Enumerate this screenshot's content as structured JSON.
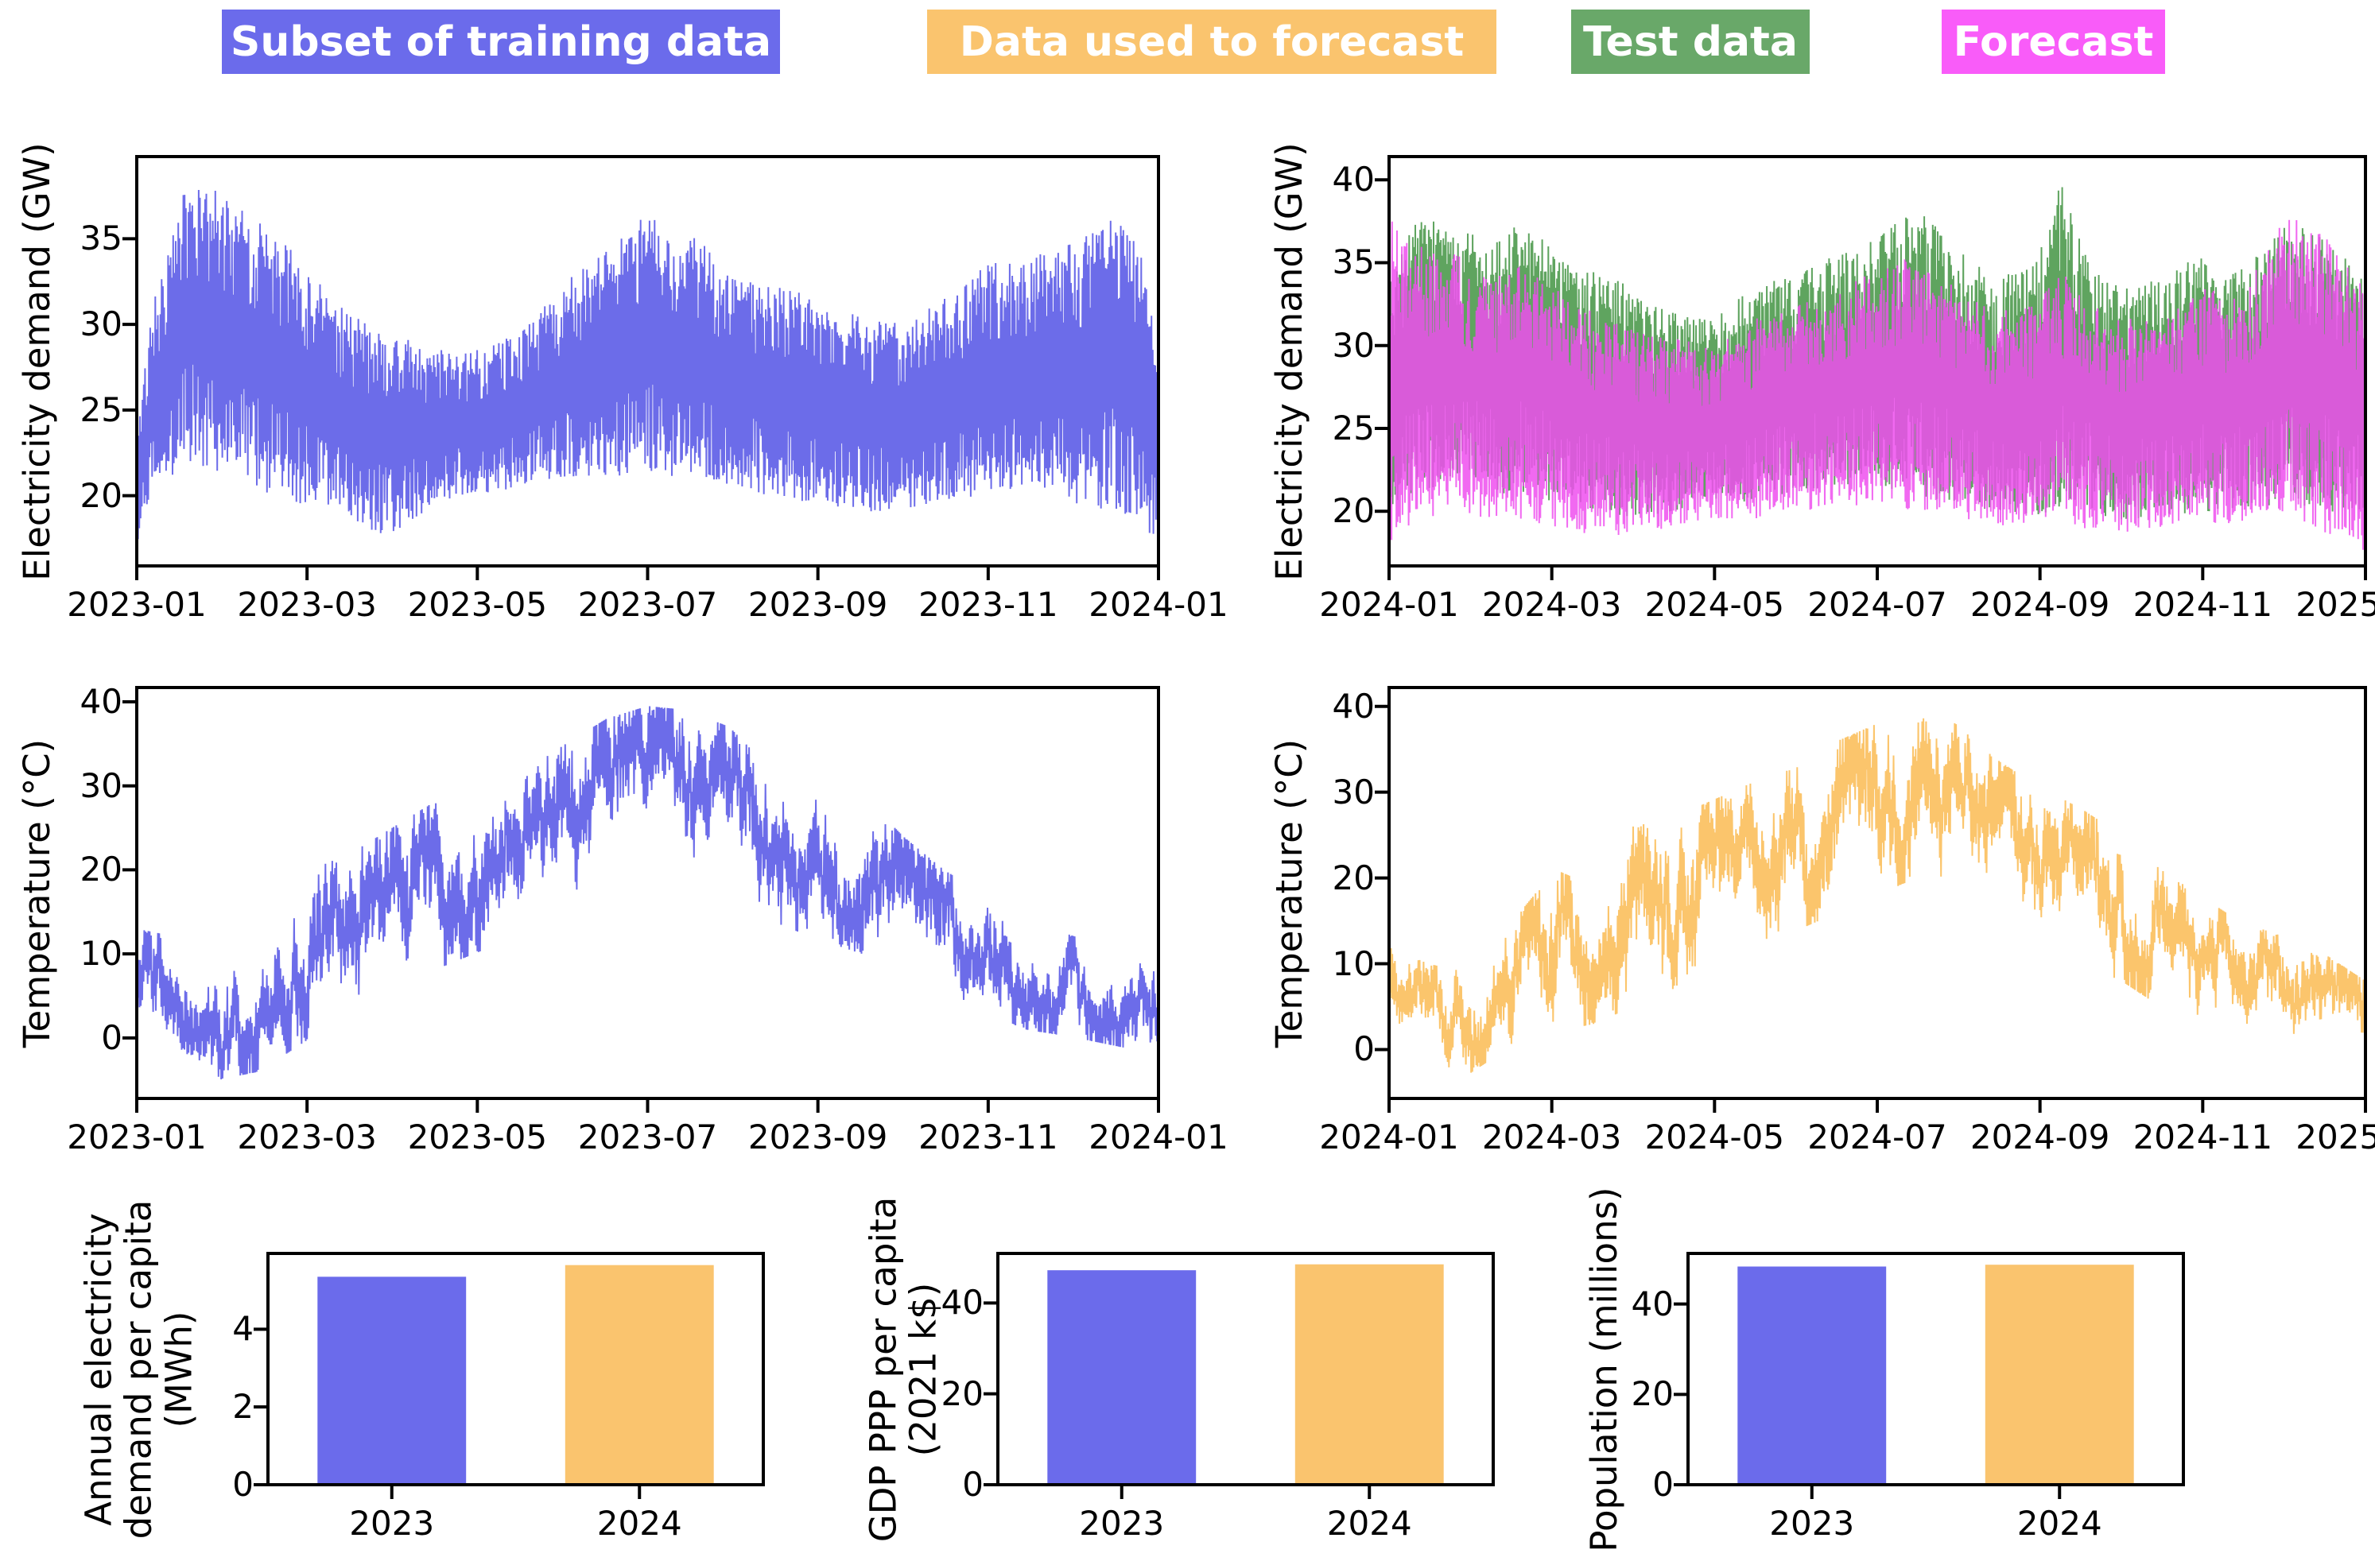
{
  "legend": {
    "items": [
      {
        "label": "Subset of training data",
        "color": "#6B6BEB",
        "text_color": "#ffffff"
      },
      {
        "label": "Data used to forecast",
        "color": "#FAC46E",
        "text_color": "#ffffff"
      },
      {
        "label": "Test data",
        "color": "#69A869",
        "text_color": "#ffffff"
      },
      {
        "label": "Forecast",
        "color": "#F95CF9",
        "text_color": "#ffffff"
      }
    ]
  },
  "chart_data": [
    {
      "id": "demand-train",
      "type": "line",
      "ylabel": "Electricity demand (GW)",
      "x_ticks": [
        "2023-01",
        "2023-03",
        "2023-05",
        "2023-07",
        "2023-09",
        "2023-11",
        "2024-01"
      ],
      "y_ticks": [
        20,
        25,
        30,
        35
      ],
      "ylim": [
        15.9,
        39.8
      ],
      "grid": false,
      "series": [
        {
          "name": "Subset of training data",
          "color": "#6C6CE9",
          "pattern": "band",
          "envelope": [
            [
              0.0,
              17.0,
              24.0
            ],
            [
              0.015,
              20.0,
              31.0
            ],
            [
              0.05,
              22.0,
              38.5
            ],
            [
              0.09,
              21.0,
              37.5
            ],
            [
              0.13,
              20.0,
              36.0
            ],
            [
              0.17,
              19.0,
              33.0
            ],
            [
              0.21,
              18.5,
              30.5
            ],
            [
              0.25,
              17.5,
              29.5
            ],
            [
              0.29,
              19.5,
              28.5
            ],
            [
              0.33,
              20.0,
              28.5
            ],
            [
              0.375,
              20.5,
              29.5
            ],
            [
              0.42,
              21.0,
              32.5
            ],
            [
              0.46,
              21.0,
              34.5
            ],
            [
              0.5,
              21.5,
              36.8
            ],
            [
              0.53,
              21.0,
              34.0
            ],
            [
              0.545,
              21.0,
              35.3
            ],
            [
              0.58,
              20.5,
              33.0
            ],
            [
              0.62,
              20.0,
              32.5
            ],
            [
              0.67,
              19.5,
              31.5
            ],
            [
              0.71,
              19.0,
              30.5
            ],
            [
              0.75,
              19.0,
              30.0
            ],
            [
              0.79,
              19.5,
              31.5
            ],
            [
              0.83,
              20.0,
              33.5
            ],
            [
              0.875,
              20.0,
              34.0
            ],
            [
              0.92,
              19.5,
              35.0
            ],
            [
              0.96,
              19.0,
              36.5
            ],
            [
              0.985,
              18.0,
              34.0
            ],
            [
              1.0,
              17.0,
              28.0
            ]
          ]
        }
      ]
    },
    {
      "id": "demand-test-vs-forecast",
      "type": "line",
      "ylabel": "Electricity demand (GW)",
      "x_ticks": [
        "2024-01",
        "2024-03",
        "2024-05",
        "2024-07",
        "2024-09",
        "2024-11",
        "2025-01"
      ],
      "y_ticks": [
        20,
        25,
        30,
        35,
        40
      ],
      "ylim": [
        16.7,
        41.4
      ],
      "grid": false,
      "series": [
        {
          "name": "Test data",
          "color": "#5FA45F",
          "pattern": "band",
          "envelope": [
            [
              0.0,
              19.0,
              34.0
            ],
            [
              0.03,
              21.0,
              38.0
            ],
            [
              0.07,
              22.0,
              37.5
            ],
            [
              0.1,
              21.0,
              36.0
            ],
            [
              0.13,
              21.0,
              37.5
            ],
            [
              0.17,
              20.5,
              36.0
            ],
            [
              0.21,
              20.0,
              34.5
            ],
            [
              0.25,
              19.5,
              33.5
            ],
            [
              0.29,
              20.0,
              32.0
            ],
            [
              0.33,
              20.5,
              31.5
            ],
            [
              0.37,
              20.5,
              33.5
            ],
            [
              0.42,
              21.0,
              34.5
            ],
            [
              0.46,
              21.5,
              35.5
            ],
            [
              0.5,
              21.5,
              36.5
            ],
            [
              0.54,
              21.0,
              38.5
            ],
            [
              0.58,
              20.5,
              36.0
            ],
            [
              0.62,
              20.0,
              34.0
            ],
            [
              0.66,
              19.5,
              35.0
            ],
            [
              0.69,
              20.0,
              40.3
            ],
            [
              0.71,
              20.0,
              36.0
            ],
            [
              0.75,
              19.5,
              33.5
            ],
            [
              0.79,
              19.5,
              34.0
            ],
            [
              0.83,
              20.0,
              35.5
            ],
            [
              0.87,
              20.0,
              34.5
            ],
            [
              0.92,
              20.5,
              37.5
            ],
            [
              0.96,
              20.0,
              36.5
            ],
            [
              1.0,
              19.5,
              34.5
            ]
          ]
        },
        {
          "name": "Forecast",
          "color": "#EE4FEE",
          "pattern": "band",
          "envelope": [
            [
              0.0,
              18.0,
              38.0
            ],
            [
              0.03,
              19.5,
              36.0
            ],
            [
              0.07,
              20.0,
              35.5
            ],
            [
              0.1,
              19.5,
              34.5
            ],
            [
              0.13,
              19.5,
              35.0
            ],
            [
              0.17,
              19.0,
              33.5
            ],
            [
              0.21,
              18.5,
              32.0
            ],
            [
              0.25,
              18.5,
              31.0
            ],
            [
              0.29,
              19.0,
              30.5
            ],
            [
              0.33,
              19.5,
              30.0
            ],
            [
              0.37,
              19.5,
              31.5
            ],
            [
              0.42,
              20.0,
              32.5
            ],
            [
              0.46,
              20.0,
              33.5
            ],
            [
              0.5,
              20.5,
              34.5
            ],
            [
              0.54,
              20.0,
              35.5
            ],
            [
              0.58,
              19.5,
              33.5
            ],
            [
              0.62,
              19.0,
              32.0
            ],
            [
              0.66,
              19.0,
              32.5
            ],
            [
              0.69,
              19.5,
              34.5
            ],
            [
              0.71,
              19.0,
              33.0
            ],
            [
              0.75,
              18.5,
              31.5
            ],
            [
              0.79,
              19.0,
              32.0
            ],
            [
              0.83,
              19.5,
              33.5
            ],
            [
              0.87,
              19.0,
              33.0
            ],
            [
              0.92,
              20.0,
              38.0
            ],
            [
              0.96,
              18.5,
              36.5
            ],
            [
              1.0,
              17.5,
              33.5
            ]
          ]
        }
      ]
    },
    {
      "id": "temp-train",
      "type": "line",
      "ylabel": "Temperature (°C)",
      "x_ticks": [
        "2023-01",
        "2023-03",
        "2023-05",
        "2023-07",
        "2023-09",
        "2023-11",
        "2024-01"
      ],
      "y_ticks": [
        0,
        10,
        20,
        30,
        40
      ],
      "ylim": [
        -7.2,
        41.7
      ],
      "grid": false,
      "series": [
        {
          "name": "Subset of training data",
          "color": "#6C6CE9",
          "pattern": "walk",
          "envelope": [
            [
              0.0,
              -1.0,
              13.0
            ],
            [
              0.04,
              -1.0,
              12.0
            ],
            [
              0.08,
              -5.0,
              10.0
            ],
            [
              0.12,
              -4.0,
              12.0
            ],
            [
              0.17,
              0.0,
              20.0
            ],
            [
              0.21,
              2.0,
              22.0
            ],
            [
              0.25,
              5.0,
              25.0
            ],
            [
              0.29,
              8.0,
              28.0
            ],
            [
              0.33,
              10.0,
              30.0
            ],
            [
              0.37,
              12.0,
              31.0
            ],
            [
              0.42,
              15.0,
              35.0
            ],
            [
              0.46,
              18.0,
              38.0
            ],
            [
              0.5,
              20.0,
              39.5
            ],
            [
              0.54,
              20.0,
              39.0
            ],
            [
              0.58,
              18.0,
              37.0
            ],
            [
              0.62,
              14.0,
              32.0
            ],
            [
              0.66,
              12.0,
              30.0
            ],
            [
              0.71,
              10.0,
              29.0
            ],
            [
              0.75,
              6.0,
              24.0
            ],
            [
              0.79,
              4.0,
              20.0
            ],
            [
              0.83,
              3.0,
              17.0
            ],
            [
              0.87,
              1.0,
              14.0
            ],
            [
              0.92,
              0.0,
              12.0
            ],
            [
              0.96,
              -1.0,
              11.0
            ],
            [
              1.0,
              -2.0,
              10.0
            ]
          ]
        }
      ]
    },
    {
      "id": "temp-forecast-input",
      "type": "line",
      "ylabel": "Temperature (°C)",
      "x_ticks": [
        "2024-01",
        "2024-03",
        "2024-05",
        "2024-07",
        "2024-09",
        "2024-11",
        "2025-01"
      ],
      "y_ticks": [
        0,
        10,
        20,
        30,
        40
      ],
      "ylim": [
        -5.7,
        42.2
      ],
      "grid": false,
      "series": [
        {
          "name": "Data used to forecast",
          "color": "#FBC56C",
          "pattern": "walk",
          "envelope": [
            [
              0.0,
              1.0,
              12.0
            ],
            [
              0.04,
              -1.0,
              10.0
            ],
            [
              0.08,
              -3.0,
              9.0
            ],
            [
              0.12,
              0.0,
              14.0
            ],
            [
              0.17,
              2.0,
              21.0
            ],
            [
              0.21,
              3.0,
              19.0
            ],
            [
              0.25,
              5.0,
              26.0
            ],
            [
              0.29,
              7.0,
              27.0
            ],
            [
              0.33,
              10.0,
              29.0
            ],
            [
              0.37,
              12.0,
              31.0
            ],
            [
              0.42,
              14.0,
              33.0
            ],
            [
              0.46,
              16.0,
              36.0
            ],
            [
              0.5,
              18.0,
              38.0
            ],
            [
              0.54,
              20.0,
              40.0
            ],
            [
              0.58,
              19.0,
              38.0
            ],
            [
              0.62,
              16.0,
              34.0
            ],
            [
              0.66,
              13.0,
              31.0
            ],
            [
              0.71,
              10.0,
              28.0
            ],
            [
              0.75,
              8.0,
              25.0
            ],
            [
              0.79,
              5.0,
              21.0
            ],
            [
              0.83,
              4.0,
              18.0
            ],
            [
              0.87,
              2.0,
              15.0
            ],
            [
              0.92,
              1.0,
              13.0
            ],
            [
              0.96,
              0.0,
              11.0
            ],
            [
              1.0,
              -3.0,
              8.0
            ]
          ]
        }
      ]
    },
    {
      "id": "annual-electricity-demand-per-capita",
      "type": "bar",
      "ylabel": "Annual electricity\ndemand per capita\n(MWh)",
      "categories": [
        "2023",
        "2024"
      ],
      "values": [
        5.35,
        5.65
      ],
      "colors": [
        "#6B6BEB",
        "#FAC46E"
      ],
      "y_ticks": [
        0,
        2,
        4
      ],
      "ylim": [
        0,
        5.95
      ]
    },
    {
      "id": "gdp-ppp-per-capita",
      "type": "bar",
      "ylabel": "GDP PPP per capita\n(2021 k$)",
      "categories": [
        "2023",
        "2024"
      ],
      "values": [
        47.2,
        48.5
      ],
      "colors": [
        "#6B6BEB",
        "#FAC46E"
      ],
      "y_ticks": [
        0,
        20,
        40
      ],
      "ylim": [
        0,
        50.9
      ]
    },
    {
      "id": "population",
      "type": "bar",
      "ylabel": "Population (millions)",
      "categories": [
        "2023",
        "2024"
      ],
      "values": [
        48.3,
        48.7
      ],
      "colors": [
        "#6B6BEB",
        "#FAC46E"
      ],
      "y_ticks": [
        0,
        20,
        40
      ],
      "ylim": [
        0,
        51.2
      ]
    }
  ]
}
